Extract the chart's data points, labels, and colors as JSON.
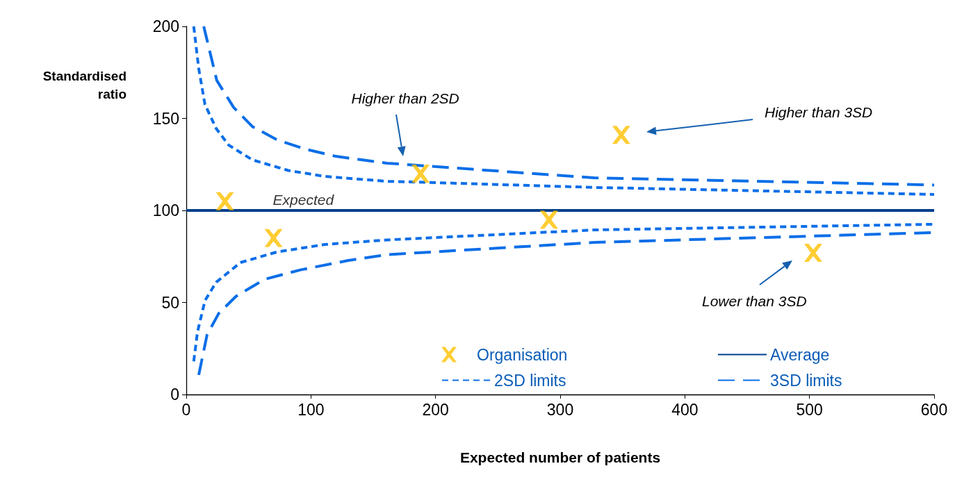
{
  "chart_data": {
    "type": "scatter",
    "xlabel": "Expected number of patients",
    "ylabel": "Standardised ratio",
    "xlim": [
      0,
      600
    ],
    "xticks": [
      0,
      100,
      200,
      300,
      400,
      500,
      600
    ],
    "ylim": [
      0,
      200
    ],
    "yticks": [
      0,
      50,
      100,
      150,
      200
    ],
    "grid": false,
    "legend": "bottom right",
    "series": [
      {
        "name": "Organisation",
        "marker": "cross",
        "color": "#ffc000",
        "x": [
          31,
          70,
          188,
          291,
          349,
          503
        ],
        "values": [
          105,
          85,
          120,
          95,
          141,
          77
        ]
      },
      {
        "name": "Average",
        "type": "line",
        "line_style": "solid",
        "marker": "none",
        "color": "#003f8a",
        "x": [
          0,
          600
        ],
        "values": [
          100,
          100
        ]
      },
      {
        "name": "2SD limits",
        "type": "line",
        "line_style": "dotted",
        "marker": "none",
        "color": "#0a6ee8",
        "x": [
          6,
          10,
          15,
          24,
          34,
          53,
          82,
          111,
          161,
          181,
          327,
          600
        ],
        "values": [
          200,
          177,
          157.5,
          144.5,
          135.5,
          127.5,
          121.7,
          118.5,
          115.8,
          115.5,
          112.5,
          108.7
        ]
      },
      {
        "type": "line",
        "line_style": "dotted",
        "marker": "none",
        "color": "#0a6ee8",
        "x": [
          6,
          9,
          15,
          24,
          43.5,
          72.5,
          111,
          161,
          327,
          600
        ],
        "values": [
          18,
          34,
          51,
          61,
          71.7,
          77.4,
          81.5,
          84,
          89.4,
          92.5
        ]
      },
      {
        "name": "3SD limits",
        "type": "line",
        "line_style": "dashed",
        "marker": "none",
        "color": "#0a6ee8",
        "x": [
          14,
          24.5,
          38,
          53,
          72.5,
          95,
          120,
          161,
          327,
          590,
          600
        ],
        "values": [
          200,
          170.6,
          156,
          145.6,
          138.5,
          133.4,
          129.4,
          125.7,
          117.7,
          114,
          113.8
        ]
      },
      {
        "type": "line",
        "line_style": "dashed",
        "marker": "none",
        "color": "#0a6ee8",
        "x": [
          10,
          16.7,
          26,
          40,
          63,
          91.5,
          130,
          161,
          327,
          600
        ],
        "values": [
          10.6,
          32.5,
          44,
          53.4,
          62.6,
          67.7,
          72.8,
          76,
          82.6,
          88
        ]
      }
    ],
    "annotations": [
      "Higher than 2SD",
      "Higher than 3SD",
      "Lower than 3SD",
      {
        "text": "Expected",
        "x": 70,
        "y": 100
      }
    ]
  }
}
